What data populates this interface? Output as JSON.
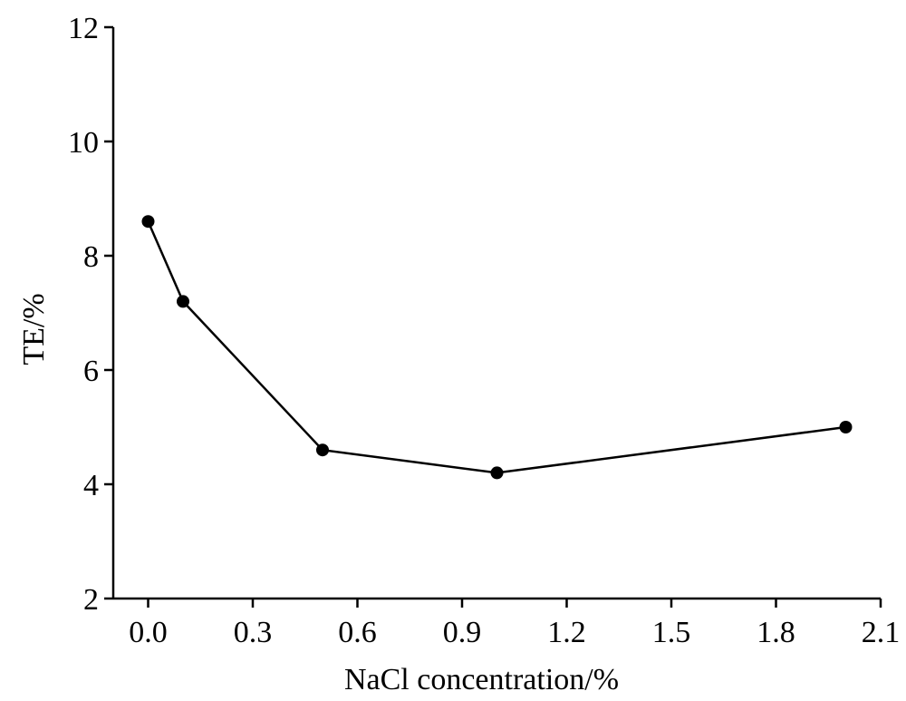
{
  "chart_data": {
    "type": "line",
    "title": "",
    "xlabel": "NaCl concentration/%",
    "ylabel": "TE/%",
    "xlim": [
      -0.1,
      2.1
    ],
    "ylim": [
      2,
      12
    ],
    "x_ticks": [
      0.0,
      0.3,
      0.6,
      0.9,
      1.2,
      1.5,
      1.8,
      2.1
    ],
    "x_tick_labels": [
      "0.0",
      "0.3",
      "0.6",
      "0.9",
      "1.2",
      "1.5",
      "1.8",
      "2.1"
    ],
    "y_ticks": [
      2,
      4,
      6,
      8,
      10,
      12
    ],
    "y_tick_labels": [
      "2",
      "4",
      "6",
      "8",
      "10",
      "12"
    ],
    "grid": false,
    "legend": "none",
    "series": [
      {
        "color": "#000000",
        "marker": "circle",
        "x": [
          0.0,
          0.1,
          0.5,
          1.0,
          2.0
        ],
        "y": [
          8.6,
          7.2,
          4.6,
          4.2,
          5.0
        ]
      }
    ]
  }
}
